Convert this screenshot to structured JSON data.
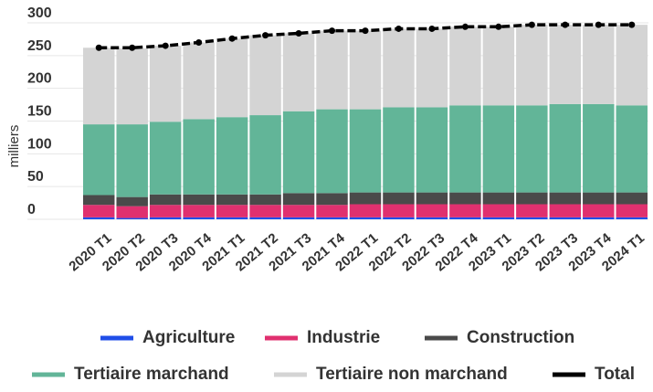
{
  "chart_data": {
    "type": "bar",
    "stacked": true,
    "y_label": "milliers",
    "categories": [
      "2020 T1",
      "2020 T2",
      "2020 T3",
      "2020 T4",
      "2021 T1",
      "2021 T2",
      "2021 T3",
      "2021 T4",
      "2022 T1",
      "2022 T2",
      "2022 T3",
      "2022 T4",
      "2023 T1",
      "2023 T2",
      "2023 T3",
      "2023 T4",
      "2024 T1"
    ],
    "series": [
      {
        "name": "Agriculture",
        "color": "#1f4ee8",
        "values": [
          3,
          2,
          3,
          3,
          3,
          3,
          3,
          3,
          3,
          3,
          3,
          3,
          3,
          3,
          3,
          3,
          3
        ]
      },
      {
        "name": "Industrie",
        "color": "#e0306f",
        "values": [
          19,
          18,
          19,
          19,
          19,
          19,
          19,
          19,
          20,
          20,
          20,
          20,
          20,
          20,
          20,
          20,
          20
        ]
      },
      {
        "name": "Construction",
        "color": "#4a4a4a",
        "values": [
          15,
          14,
          16,
          16,
          16,
          16,
          18,
          18,
          18,
          18,
          18,
          18,
          18,
          18,
          18,
          18,
          18
        ]
      },
      {
        "name": "Tertiaire marchand",
        "color": "#62b598",
        "values": [
          108,
          111,
          111,
          115,
          118,
          121,
          125,
          128,
          127,
          130,
          130,
          133,
          133,
          133,
          135,
          135,
          133
        ]
      },
      {
        "name": "Tertiaire non marchand",
        "color": "#d4d4d4",
        "values": [
          117,
          116,
          116,
          117,
          120,
          122,
          119,
          120,
          120,
          120,
          120,
          120,
          120,
          123,
          121,
          121,
          123
        ]
      },
      {
        "name": "Total",
        "color": "#000000",
        "type": "line",
        "values": [
          262,
          262,
          265,
          270,
          276,
          281,
          284,
          288,
          288,
          291,
          291,
          294,
          294,
          297,
          297,
          297,
          297
        ]
      }
    ],
    "ylim": [
      0,
      300
    ],
    "yticks": [
      0,
      50,
      100,
      150,
      200,
      250,
      300
    ]
  }
}
